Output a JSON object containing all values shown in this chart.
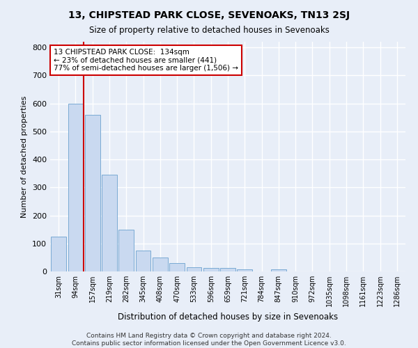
{
  "title": "13, CHIPSTEAD PARK CLOSE, SEVENOAKS, TN13 2SJ",
  "subtitle": "Size of property relative to detached houses in Sevenoaks",
  "xlabel": "Distribution of detached houses by size in Sevenoaks",
  "ylabel": "Number of detached properties",
  "categories": [
    "31sqm",
    "94sqm",
    "157sqm",
    "219sqm",
    "282sqm",
    "345sqm",
    "408sqm",
    "470sqm",
    "533sqm",
    "596sqm",
    "659sqm",
    "721sqm",
    "784sqm",
    "847sqm",
    "910sqm",
    "972sqm",
    "1035sqm",
    "1098sqm",
    "1161sqm",
    "1223sqm",
    "1286sqm"
  ],
  "values": [
    125,
    600,
    560,
    345,
    150,
    75,
    50,
    30,
    15,
    13,
    13,
    7,
    0,
    8,
    0,
    0,
    0,
    0,
    0,
    0,
    0
  ],
  "bar_color": "#c9d9f0",
  "bar_edge_color": "#7aaad4",
  "annotation_line1": "13 CHIPSTEAD PARK CLOSE:  134sqm",
  "annotation_line2": "← 23% of detached houses are smaller (441)",
  "annotation_line3": "77% of semi-detached houses are larger (1,506) →",
  "annotation_box_color": "#ffffff",
  "annotation_box_edgecolor": "#cc0000",
  "vline_color": "#cc0000",
  "ylim": [
    0,
    820
  ],
  "yticks": [
    0,
    100,
    200,
    300,
    400,
    500,
    600,
    700,
    800
  ],
  "background_color": "#e8eef8",
  "grid_color": "#ffffff",
  "footer_line1": "Contains HM Land Registry data © Crown copyright and database right 2024.",
  "footer_line2": "Contains public sector information licensed under the Open Government Licence v3.0."
}
